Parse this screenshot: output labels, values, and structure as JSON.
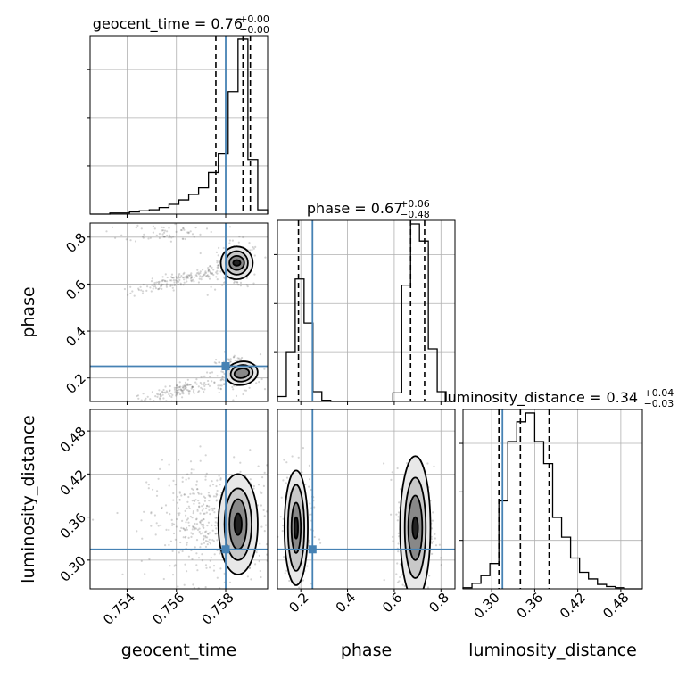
{
  "chart_data": {
    "type": "corner",
    "parameters": [
      "geocent_time",
      "phase",
      "luminosity_distance"
    ],
    "truth": {
      "geocent_time": 0.758,
      "phase": 0.25,
      "luminosity_distance": 0.315
    },
    "titles": [
      {
        "param": "geocent_time",
        "prefix": "geocent_time = 0.76",
        "sup": "+0.00",
        "sub": "−0.00"
      },
      {
        "param": "phase",
        "prefix": "phase = 0.67",
        "sup": "+0.06",
        "sub": "−0.48"
      },
      {
        "param": "luminosity_distance",
        "prefix": "luminosity_distance = 0.34",
        "sup": "+0.04",
        "sub": "−0.03"
      }
    ],
    "ranges": {
      "geocent_time": [
        0.7525,
        0.7597
      ],
      "phase": [
        0.1,
        0.86
      ],
      "luminosity_distance": [
        0.26,
        0.51
      ]
    },
    "ticks": {
      "geocent_time": {
        "values": [
          0.754,
          0.756,
          0.758
        ],
        "labels": [
          "0.754",
          "0.756",
          "0.758"
        ]
      },
      "phase": {
        "values": [
          0.2,
          0.4,
          0.6,
          0.8
        ],
        "labels": [
          "0.2",
          "0.4",
          "0.6",
          "0.8"
        ]
      },
      "luminosity_distance": {
        "values": [
          0.3,
          0.36,
          0.42,
          0.48
        ],
        "labels": [
          "0.30",
          "0.36",
          "0.42",
          "0.48"
        ]
      }
    },
    "quantiles": {
      "geocent_time": [
        0.7576,
        0.7587,
        0.759
      ],
      "phase": [
        0.19,
        0.67,
        0.73
      ],
      "luminosity_distance": [
        0.31,
        0.34,
        0.38
      ]
    },
    "histograms": {
      "geocent_time": {
        "edges": [
          0.7525,
          0.7529,
          0.7533,
          0.7537,
          0.7541,
          0.7545,
          0.7549,
          0.7553,
          0.7557,
          0.7561,
          0.7565,
          0.7569,
          0.7573,
          0.7577,
          0.7581,
          0.7585,
          0.7589,
          0.7593,
          0.7597
        ],
        "counts": [
          0,
          0,
          1,
          1,
          2,
          3,
          4,
          6,
          9,
          13,
          18,
          24,
          38,
          55,
          112,
          160,
          50,
          4
        ]
      },
      "phase": {
        "edges": [
          0.1,
          0.138,
          0.176,
          0.214,
          0.252,
          0.29,
          0.328,
          0.366,
          0.404,
          0.442,
          0.48,
          0.518,
          0.556,
          0.594,
          0.632,
          0.67,
          0.708,
          0.746,
          0.784,
          0.822,
          0.86
        ],
        "counts": [
          4,
          40,
          100,
          64,
          8,
          1,
          0,
          0,
          0,
          0,
          0,
          0,
          0,
          7,
          95,
          145,
          131,
          43,
          8,
          0
        ]
      },
      "luminosity_distance": {
        "edges": [
          0.26,
          0.2725,
          0.285,
          0.2975,
          0.31,
          0.3225,
          0.335,
          0.3475,
          0.36,
          0.3725,
          0.385,
          0.3975,
          0.41,
          0.4225,
          0.435,
          0.4475,
          0.46,
          0.4725,
          0.485,
          0.4975,
          0.51
        ],
        "counts": [
          1,
          5,
          12,
          23,
          80,
          134,
          152,
          160,
          134,
          114,
          65,
          47,
          28,
          15,
          9,
          4,
          2,
          1,
          0,
          0
        ]
      }
    },
    "scatter_pairs": [
      {
        "x": "geocent_time",
        "y": "phase"
      },
      {
        "x": "geocent_time",
        "y": "luminosity_distance"
      },
      {
        "x": "phase",
        "y": "luminosity_distance"
      }
    ],
    "grid": true
  }
}
